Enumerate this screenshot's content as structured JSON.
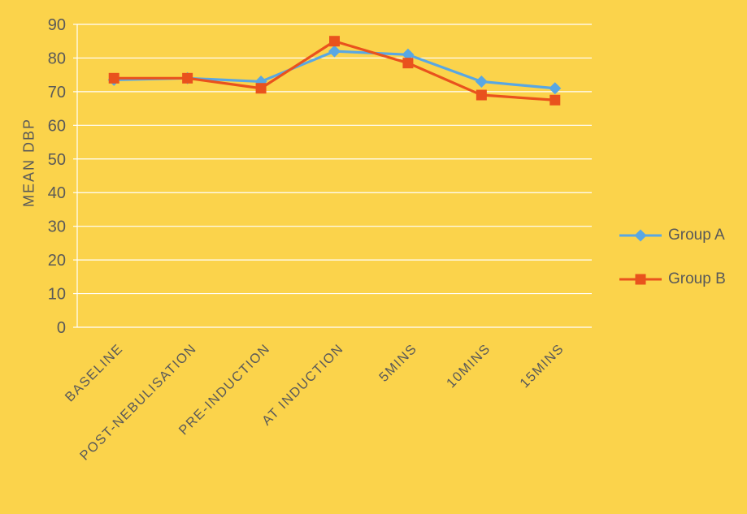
{
  "chart_data": {
    "type": "line",
    "categories": [
      "BASELINE",
      "POST-NEBULISATION",
      "PRE-INDUCTION",
      "AT INDUCTION",
      "5MINS",
      "10MINS",
      "15MINS"
    ],
    "series": [
      {
        "name": "Group A",
        "color": "#59a7e3",
        "marker": "diamond",
        "values": [
          73.5,
          74,
          73,
          82,
          81,
          73,
          71
        ]
      },
      {
        "name": "Group B",
        "color": "#e9521d",
        "marker": "square",
        "values": [
          74,
          74,
          71,
          85,
          78.5,
          69,
          67.5
        ]
      }
    ],
    "title": "",
    "xlabel": "",
    "ylabel": "MEAN DBP",
    "ylim": [
      0,
      90
    ],
    "yticks": [
      0,
      10,
      20,
      30,
      40,
      50,
      60,
      70,
      80,
      90
    ],
    "grid": "horizontal",
    "legend_position": "right",
    "colors": {
      "background": "#fbd34b",
      "grid": "#ffffff",
      "text": "#595959"
    }
  }
}
